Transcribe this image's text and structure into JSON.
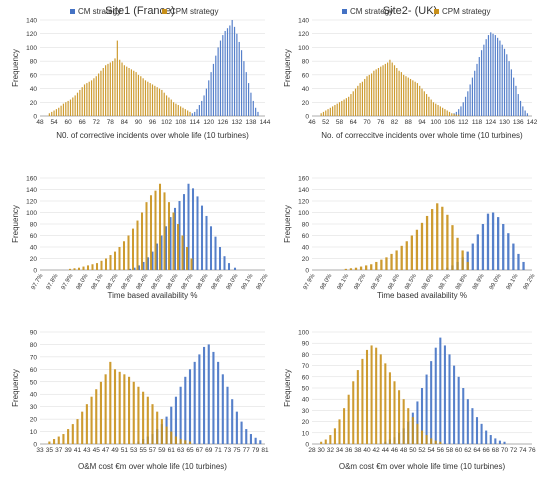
{
  "figure": {
    "site_titles": [
      "Site1 (France)",
      "Site2- (UK)"
    ]
  },
  "colors": {
    "cm": "#4472C4",
    "cpm": "#C8901A",
    "overlap": "#8A8F5A",
    "axis": "#9a9a9a",
    "text": "#333333",
    "grid": "#d9d9d9"
  },
  "chart_data": [
    {
      "id": "site1-incidents",
      "type": "bar",
      "ylabel": "Frequency",
      "xlabel": "N0. of corrective incidents over whole life (10 turbines)",
      "ylim": [
        0,
        140
      ],
      "yticks": [
        0,
        20,
        40,
        60,
        80,
        100,
        120,
        140
      ],
      "xlim": [
        48,
        144
      ],
      "xticks": [
        "48",
        "54",
        "60",
        "66",
        "72",
        "78",
        "84",
        "90",
        "96",
        "102",
        "108",
        "114",
        "120",
        "126",
        "132",
        "138",
        "144"
      ],
      "series": [
        {
          "name": "CM strategy",
          "x": [
            113,
            114,
            115,
            116,
            117,
            118,
            119,
            120,
            121,
            122,
            123,
            124,
            125,
            126,
            127,
            128,
            129,
            130,
            131,
            132,
            133,
            134,
            135,
            136,
            137,
            138,
            139,
            140,
            141
          ],
          "values": [
            4,
            6,
            10,
            16,
            22,
            30,
            40,
            52,
            64,
            76,
            88,
            100,
            110,
            118,
            124,
            128,
            132,
            140,
            130,
            120,
            108,
            96,
            80,
            64,
            48,
            34,
            22,
            12,
            6
          ]
        },
        {
          "name": "CPM strategy",
          "x": [
            52,
            53,
            54,
            55,
            56,
            57,
            58,
            59,
            60,
            61,
            62,
            63,
            64,
            65,
            66,
            67,
            68,
            69,
            70,
            71,
            72,
            73,
            74,
            75,
            76,
            77,
            78,
            79,
            80,
            81,
            82,
            83,
            84,
            85,
            86,
            87,
            88,
            89,
            90,
            91,
            92,
            93,
            94,
            95,
            96,
            97,
            98,
            99,
            100,
            101,
            102,
            103,
            104,
            105,
            106,
            107,
            108,
            109,
            110,
            111,
            112
          ],
          "values": [
            4,
            6,
            8,
            10,
            12,
            15,
            18,
            20,
            22,
            24,
            27,
            30,
            34,
            38,
            42,
            46,
            48,
            50,
            52,
            55,
            58,
            62,
            66,
            70,
            74,
            76,
            78,
            80,
            84,
            110,
            82,
            78,
            74,
            72,
            70,
            68,
            66,
            64,
            60,
            58,
            55,
            52,
            50,
            48,
            46,
            44,
            42,
            40,
            38,
            34,
            30,
            27,
            24,
            20,
            18,
            16,
            14,
            12,
            10,
            8,
            6
          ]
        }
      ]
    },
    {
      "id": "site2-incidents",
      "type": "bar",
      "ylabel": "Frequency",
      "xlabel": "No. of correccitve incidents over whole time (10 turbines)",
      "ylim": [
        0,
        140
      ],
      "yticks": [
        0,
        20,
        40,
        60,
        80,
        100,
        120,
        140
      ],
      "xlim": [
        46,
        142
      ],
      "xticks": [
        "46",
        "52",
        "58",
        "64",
        "70",
        "76",
        "82",
        "88",
        "94",
        "100",
        "106",
        "112",
        "118",
        "124",
        "130",
        "136",
        "142"
      ],
      "series": [
        {
          "name": "CM strategy",
          "x": [
            108,
            109,
            110,
            111,
            112,
            113,
            114,
            115,
            116,
            117,
            118,
            119,
            120,
            121,
            122,
            123,
            124,
            125,
            126,
            127,
            128,
            129,
            130,
            131,
            132,
            133,
            134,
            135,
            136,
            137,
            138,
            139,
            140
          ],
          "values": [
            4,
            6,
            10,
            14,
            20,
            28,
            36,
            46,
            56,
            66,
            76,
            86,
            96,
            104,
            112,
            118,
            122,
            120,
            118,
            114,
            110,
            104,
            98,
            90,
            80,
            68,
            56,
            44,
            32,
            22,
            14,
            8,
            4
          ]
        },
        {
          "name": "CPM strategy",
          "x": [
            50,
            51,
            52,
            53,
            54,
            55,
            56,
            57,
            58,
            59,
            60,
            61,
            62,
            63,
            64,
            65,
            66,
            67,
            68,
            69,
            70,
            71,
            72,
            73,
            74,
            75,
            76,
            77,
            78,
            79,
            80,
            81,
            82,
            83,
            84,
            85,
            86,
            87,
            88,
            89,
            90,
            91,
            92,
            93,
            94,
            95,
            96,
            97,
            98,
            99,
            100,
            101,
            102,
            103,
            104,
            105,
            106,
            107,
            108,
            109,
            110
          ],
          "values": [
            4,
            6,
            8,
            10,
            12,
            14,
            16,
            18,
            20,
            22,
            24,
            26,
            28,
            32,
            36,
            40,
            44,
            48,
            50,
            54,
            58,
            60,
            62,
            66,
            68,
            70,
            72,
            74,
            76,
            78,
            82,
            78,
            74,
            70,
            66,
            64,
            60,
            58,
            56,
            54,
            52,
            50,
            48,
            44,
            40,
            36,
            32,
            28,
            24,
            20,
            18,
            16,
            14,
            12,
            10,
            8,
            6,
            4,
            3,
            2,
            2
          ]
        }
      ]
    },
    {
      "id": "site1-availability",
      "type": "bar",
      "ylabel": "Frequency",
      "xlabel": "Time based availability %",
      "ylim": [
        0,
        160
      ],
      "yticks": [
        0,
        20,
        40,
        60,
        80,
        100,
        120,
        140,
        160
      ],
      "xlim": [
        97.7,
        99.2
      ],
      "xticks": [
        "97.7%",
        "97.8%",
        "97.9%",
        "98.0%",
        "98.1%",
        "98.2%",
        "98.3%",
        "98.4%",
        "98.5%",
        "98.6%",
        "98.7%",
        "98.8%",
        "98.9%",
        "99.0%",
        "99.1%",
        "99.2%"
      ],
      "series": [
        {
          "name": "CM strategy",
          "x": [
            98.3,
            98.33,
            98.36,
            98.39,
            98.42,
            98.45,
            98.48,
            98.51,
            98.54,
            98.57,
            98.6,
            98.63,
            98.66,
            98.69,
            98.72,
            98.75,
            98.78,
            98.81,
            98.84,
            98.87,
            98.9,
            98.93,
            98.96,
            99.0
          ],
          "values": [
            2,
            4,
            8,
            14,
            22,
            32,
            46,
            60,
            76,
            92,
            108,
            120,
            132,
            150,
            142,
            128,
            112,
            94,
            76,
            58,
            40,
            24,
            12,
            4
          ]
        },
        {
          "name": "CPM strategy",
          "x": [
            97.9,
            97.93,
            97.96,
            97.99,
            98.02,
            98.05,
            98.08,
            98.11,
            98.14,
            98.17,
            98.2,
            98.23,
            98.26,
            98.29,
            98.32,
            98.35,
            98.38,
            98.41,
            98.44,
            98.47,
            98.5,
            98.53,
            98.56,
            98.59,
            98.62,
            98.65,
            98.68,
            98.71
          ],
          "values": [
            2,
            3,
            4,
            6,
            8,
            10,
            12,
            16,
            20,
            26,
            32,
            40,
            50,
            60,
            72,
            86,
            100,
            118,
            130,
            138,
            150,
            135,
            118,
            100,
            80,
            60,
            40,
            20
          ]
        }
      ]
    },
    {
      "id": "site2-availability",
      "type": "bar",
      "ylabel": "Frequency",
      "xlabel": "Time  based  availability %",
      "ylim": [
        0,
        160
      ],
      "yticks": [
        0,
        20,
        40,
        60,
        80,
        100,
        120,
        140,
        160
      ],
      "xlim": [
        97.9,
        99.2
      ],
      "xticks": [
        "97.9%",
        "98.0%",
        "98.1%",
        "98.2%",
        "98.3%",
        "98.4%",
        "98.5%",
        "98.6%",
        "98.7%",
        "98.8%",
        "98.9%",
        "99.0%",
        "99.1%",
        "99.2%"
      ],
      "series": [
        {
          "name": "CM strategy",
          "x": [
            98.7,
            98.73,
            98.76,
            98.79,
            98.82,
            98.85,
            98.88,
            98.91,
            98.94,
            98.97,
            99.0,
            99.03,
            99.06,
            99.09,
            99.12,
            99.15
          ],
          "values": [
            4,
            8,
            14,
            22,
            32,
            46,
            62,
            80,
            98,
            100,
            92,
            80,
            64,
            46,
            28,
            14
          ]
        },
        {
          "name": "CPM strategy",
          "x": [
            98.1,
            98.13,
            98.16,
            98.19,
            98.22,
            98.25,
            98.28,
            98.31,
            98.34,
            98.37,
            98.4,
            98.43,
            98.46,
            98.49,
            98.52,
            98.55,
            98.58,
            98.61,
            98.64,
            98.67,
            98.7,
            98.73,
            98.76,
            98.79,
            98.82
          ],
          "values": [
            2,
            3,
            4,
            6,
            8,
            10,
            14,
            18,
            22,
            28,
            34,
            42,
            50,
            60,
            70,
            82,
            94,
            106,
            116,
            110,
            96,
            78,
            56,
            34,
            14
          ]
        }
      ]
    },
    {
      "id": "site1-cost",
      "type": "bar",
      "ylabel": "Frequency",
      "xlabel": "O&M cost €m over whole life (10 turbines)",
      "ylim": [
        0,
        90
      ],
      "yticks": [
        0,
        10,
        20,
        30,
        40,
        50,
        60,
        70,
        80,
        90
      ],
      "xlim": [
        33,
        81
      ],
      "xticks": [
        "33",
        "35",
        "37",
        "39",
        "41",
        "43",
        "45",
        "47",
        "49",
        "51",
        "53",
        "55",
        "57",
        "59",
        "61",
        "63",
        "65",
        "67",
        "69",
        "71",
        "73",
        "75",
        "77",
        "79",
        "81"
      ],
      "series": [
        {
          "name": "CM strategy",
          "x": [
            54,
            55,
            56,
            57,
            58,
            59,
            60,
            61,
            62,
            63,
            64,
            65,
            66,
            67,
            68,
            69,
            70,
            71,
            72,
            73,
            74,
            75,
            76,
            77,
            78,
            79,
            80
          ],
          "values": [
            2,
            4,
            6,
            8,
            12,
            16,
            22,
            30,
            38,
            46,
            54,
            60,
            66,
            72,
            78,
            80,
            74,
            66,
            56,
            46,
            36,
            26,
            18,
            12,
            8,
            5,
            3
          ]
        },
        {
          "name": "CPM strategy",
          "x": [
            35,
            36,
            37,
            38,
            39,
            40,
            41,
            42,
            43,
            44,
            45,
            46,
            47,
            48,
            49,
            50,
            51,
            52,
            53,
            54,
            55,
            56,
            57,
            58,
            59,
            60,
            61,
            62,
            63,
            64,
            65
          ],
          "values": [
            2,
            4,
            6,
            8,
            12,
            16,
            20,
            26,
            32,
            38,
            44,
            50,
            56,
            66,
            60,
            58,
            56,
            54,
            50,
            46,
            42,
            38,
            32,
            26,
            20,
            14,
            10,
            6,
            4,
            3,
            2
          ]
        }
      ]
    },
    {
      "id": "site2-cost",
      "type": "bar",
      "ylabel": "Frequency",
      "xlabel": "O&m cost €m over whole life time (10 turbines)",
      "ylim": [
        0,
        100
      ],
      "yticks": [
        0,
        10,
        20,
        30,
        40,
        50,
        60,
        70,
        80,
        90,
        100
      ],
      "xlim": [
        28,
        76
      ],
      "xticks": [
        "28",
        "30",
        "32",
        "34",
        "36",
        "38",
        "40",
        "42",
        "44",
        "46",
        "48",
        "50",
        "52",
        "54",
        "56",
        "58",
        "60",
        "62",
        "64",
        "66",
        "68",
        "70",
        "72",
        "74",
        "76"
      ],
      "series": [
        {
          "name": "CM strategy",
          "x": [
            44,
            45,
            46,
            47,
            48,
            49,
            50,
            51,
            52,
            53,
            54,
            55,
            56,
            57,
            58,
            59,
            60,
            61,
            62,
            63,
            64,
            65,
            66,
            67,
            68,
            69,
            70
          ],
          "values": [
            2,
            4,
            6,
            10,
            14,
            20,
            28,
            38,
            50,
            62,
            74,
            86,
            95,
            88,
            80,
            70,
            60,
            50,
            40,
            32,
            24,
            18,
            12,
            8,
            5,
            3,
            2
          ]
        },
        {
          "name": "CPM strategy",
          "x": [
            30,
            31,
            32,
            33,
            34,
            35,
            36,
            37,
            38,
            39,
            40,
            41,
            42,
            43,
            44,
            45,
            46,
            47,
            48,
            49,
            50,
            51,
            52,
            53,
            54,
            55,
            56
          ],
          "values": [
            2,
            4,
            8,
            14,
            22,
            32,
            44,
            56,
            66,
            76,
            84,
            88,
            86,
            80,
            72,
            64,
            56,
            48,
            40,
            32,
            24,
            18,
            12,
            8,
            5,
            3,
            2
          ]
        }
      ]
    }
  ]
}
